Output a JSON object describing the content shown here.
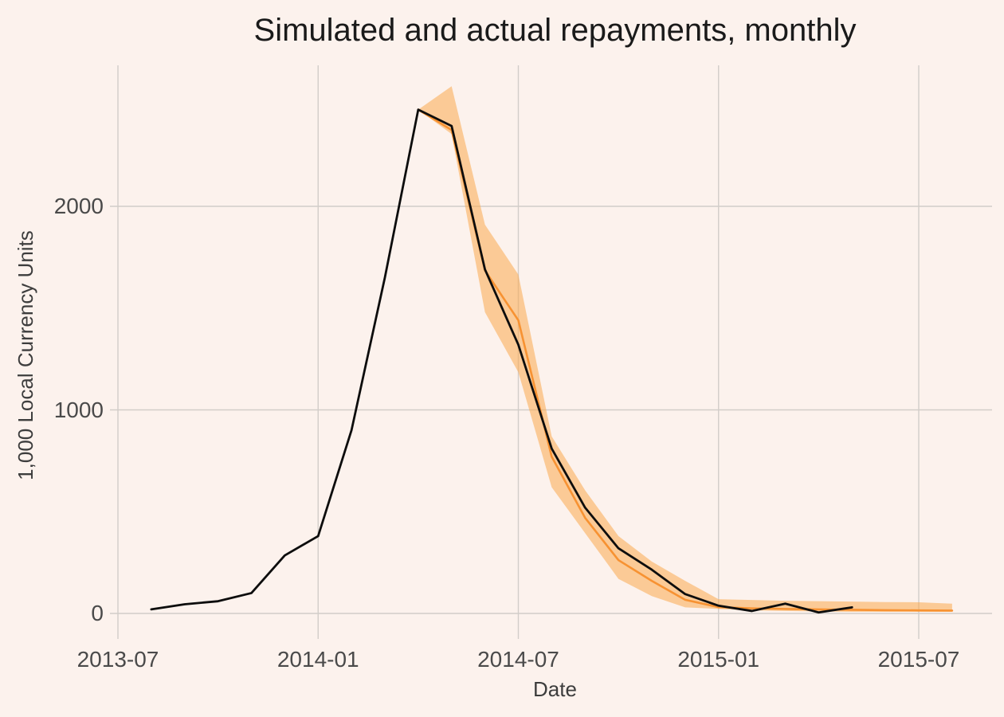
{
  "page": {
    "title": "Simulated and actual repayments, monthly"
  },
  "chart_data": {
    "type": "line",
    "title": "Simulated and actual repayments, monthly",
    "xlabel": "Date",
    "ylabel": "1,000 Local Currency Units",
    "x_ticks": [
      "2013-07",
      "2014-01",
      "2014-07",
      "2015-01",
      "2015-07"
    ],
    "y_ticks": [
      0,
      1000,
      2000
    ],
    "ylim": [
      0,
      2690
    ],
    "x_range": [
      "2013-07",
      "2015-09"
    ],
    "grid": true,
    "legend": "none",
    "colors": {
      "background": "#FCF2ED",
      "gridline": "#D2CDC9",
      "actual_line": "#0d0d0d",
      "simulated_line": "#F79232",
      "band_fill": "#F9A94F"
    },
    "series": [
      {
        "name": "actual",
        "color": "#0d0d0d",
        "x": [
          "2013-08",
          "2013-09",
          "2013-10",
          "2013-11",
          "2013-12",
          "2014-01",
          "2014-02",
          "2014-03",
          "2014-04",
          "2014-05",
          "2014-06",
          "2014-07",
          "2014-08",
          "2014-09",
          "2014-10",
          "2014-11",
          "2014-12",
          "2015-01",
          "2015-02",
          "2015-03",
          "2015-04",
          "2015-05"
        ],
        "values": [
          20,
          45,
          60,
          100,
          285,
          380,
          900,
          1650,
          2475,
          2395,
          1690,
          1320,
          810,
          520,
          320,
          215,
          95,
          38,
          12,
          48,
          5,
          30
        ]
      },
      {
        "name": "simulated",
        "color": "#F79232",
        "x": [
          "2014-04",
          "2014-05",
          "2014-06",
          "2014-07",
          "2014-08",
          "2014-09",
          "2014-10",
          "2014-11",
          "2014-12",
          "2015-01",
          "2015-02",
          "2015-03",
          "2015-04",
          "2015-05",
          "2015-06",
          "2015-07",
          "2015-08"
        ],
        "values": [
          2475,
          2375,
          1685,
          1440,
          770,
          470,
          262,
          160,
          67,
          31,
          25,
          22,
          20,
          18,
          16,
          15,
          14
        ]
      }
    ],
    "band": {
      "name": "simulation-interval",
      "color": "#F9A94F",
      "opacity": 0.55,
      "x": [
        "2014-04",
        "2014-05",
        "2014-06",
        "2014-07",
        "2014-08",
        "2014-09",
        "2014-10",
        "2014-11",
        "2014-12",
        "2015-01",
        "2015-02",
        "2015-03",
        "2015-04",
        "2015-05",
        "2015-06",
        "2015-07",
        "2015-08"
      ],
      "lower": [
        2475,
        2355,
        1480,
        1185,
        620,
        395,
        170,
        85,
        30,
        22,
        15,
        12,
        10,
        8,
        8,
        8,
        8
      ],
      "upper": [
        2475,
        2590,
        1910,
        1665,
        870,
        605,
        380,
        255,
        160,
        70,
        66,
        62,
        60,
        58,
        56,
        55,
        48
      ]
    }
  }
}
